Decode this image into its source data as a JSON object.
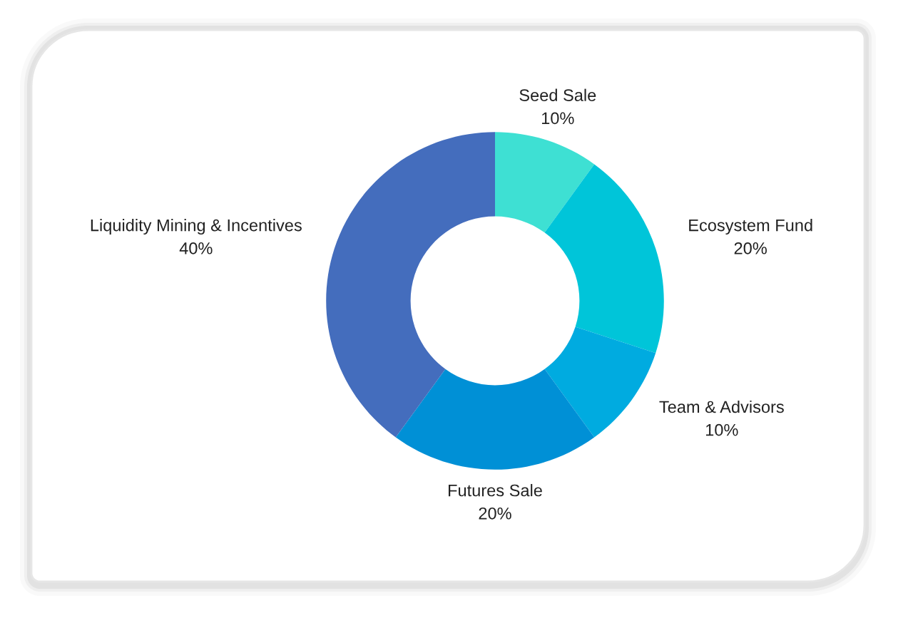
{
  "chart_data": {
    "type": "donut",
    "categories": [
      "Seed Sale",
      "Ecosystem Fund",
      "Team & Advisors",
      "Futures Sale",
      "Liquidity Mining & Incentives"
    ],
    "values": [
      10,
      20,
      10,
      20,
      40
    ],
    "colors": [
      "#3ee0d3",
      "#00c5d9",
      "#00abe0",
      "#0090d6",
      "#446dbd"
    ],
    "value_labels": [
      "10%",
      "20%",
      "10%",
      "20%",
      "40%"
    ],
    "legend": false
  }
}
